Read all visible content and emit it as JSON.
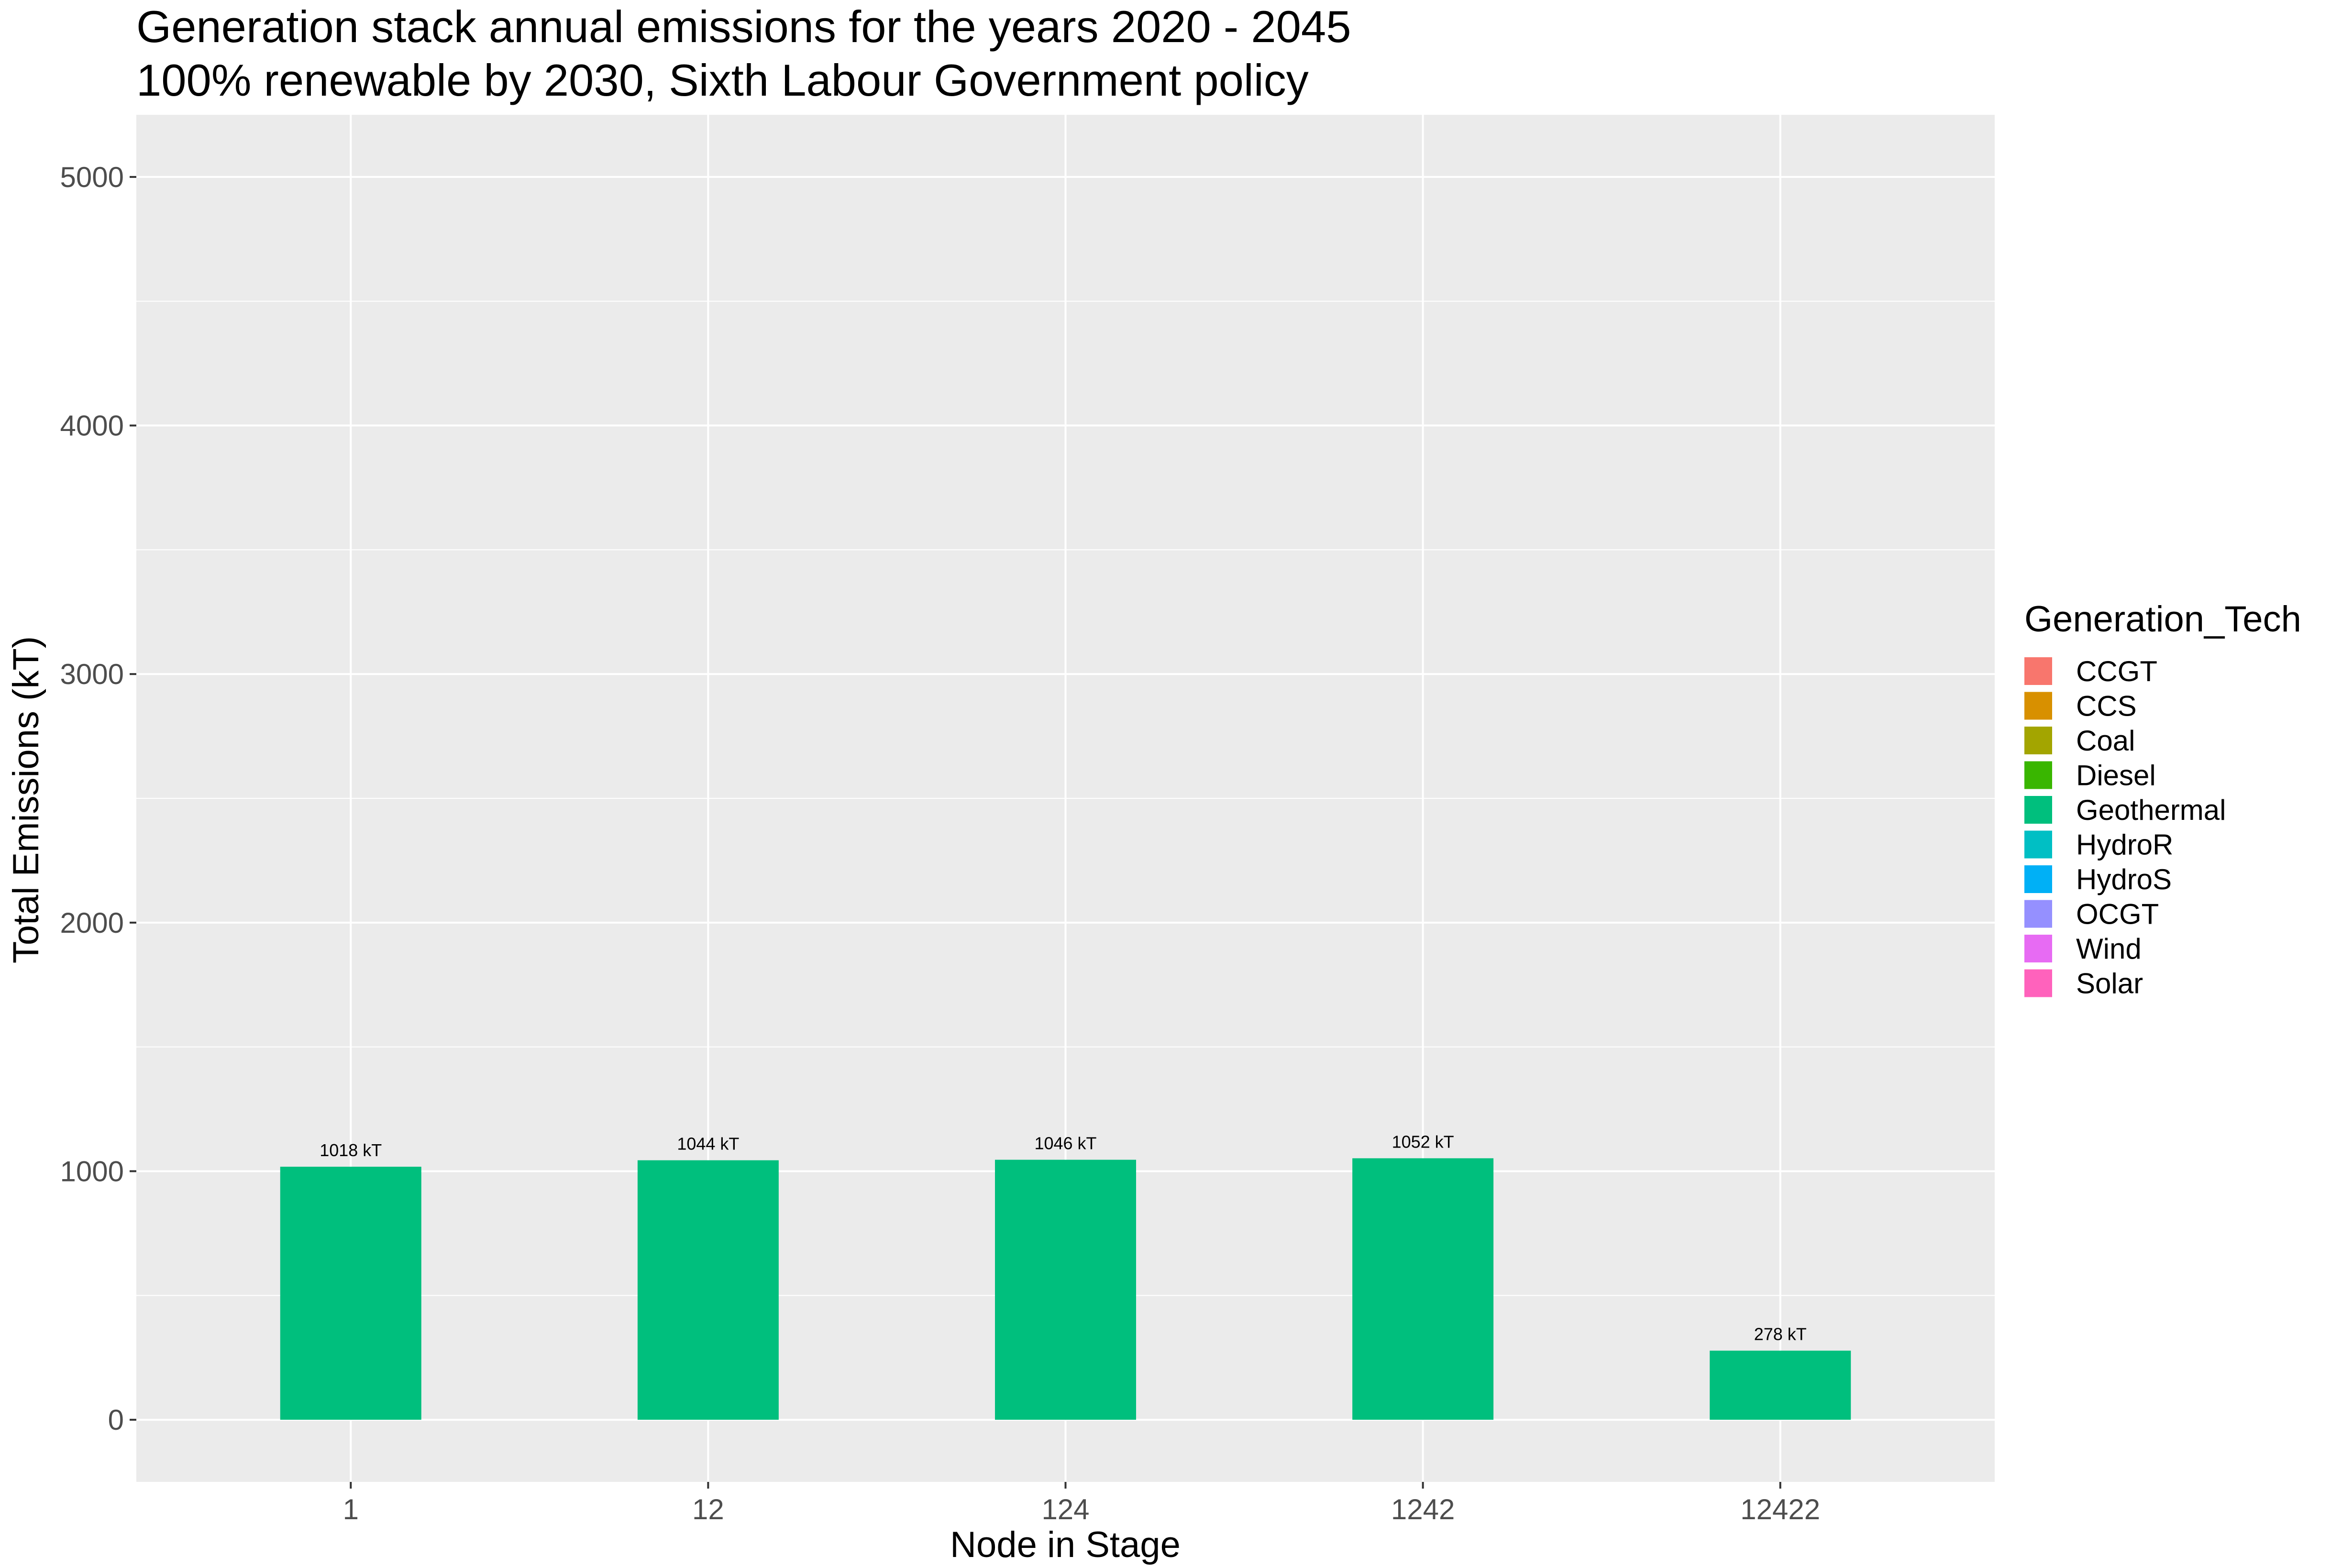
{
  "chart_data": {
    "type": "bar",
    "title": "Generation stack annual emissions for the years 2020 - 2045",
    "subtitle": "100% renewable by 2030, Sixth Labour Government policy",
    "xlabel": "Node in Stage",
    "ylabel": "Total Emissions (kT)",
    "categories": [
      "1",
      "12",
      "124",
      "1242",
      "12422"
    ],
    "series": [
      {
        "name": "Geothermal",
        "color": "#00BF7D",
        "values": [
          1018,
          1044,
          1046,
          1052,
          278
        ]
      }
    ],
    "bar_labels": [
      "1018 kT",
      "1044 kT",
      "1046 kT",
      "1052 kT",
      "278 kT"
    ],
    "yticks": [
      0,
      1000,
      2000,
      3000,
      4000,
      5000
    ],
    "ytick_labels": [
      "0",
      "1000",
      "2000",
      "3000",
      "4000",
      "5000"
    ],
    "ylim": [
      -250,
      5250
    ],
    "grid": true,
    "panel_background": "#EBEBEB",
    "legend": {
      "title": "Generation_Tech",
      "position": "right",
      "items": [
        {
          "label": "CCGT",
          "color": "#F8766D"
        },
        {
          "label": "CCS",
          "color": "#D89000"
        },
        {
          "label": "Coal",
          "color": "#A3A500"
        },
        {
          "label": "Diesel",
          "color": "#39B600"
        },
        {
          "label": "Geothermal",
          "color": "#00BF7D"
        },
        {
          "label": "HydroR",
          "color": "#00BFC4"
        },
        {
          "label": "HydroS",
          "color": "#00B0F6"
        },
        {
          "label": "OCGT",
          "color": "#9590FF"
        },
        {
          "label": "Wind",
          "color": "#E76BF3"
        },
        {
          "label": "Solar",
          "color": "#FF62BC"
        }
      ]
    }
  }
}
